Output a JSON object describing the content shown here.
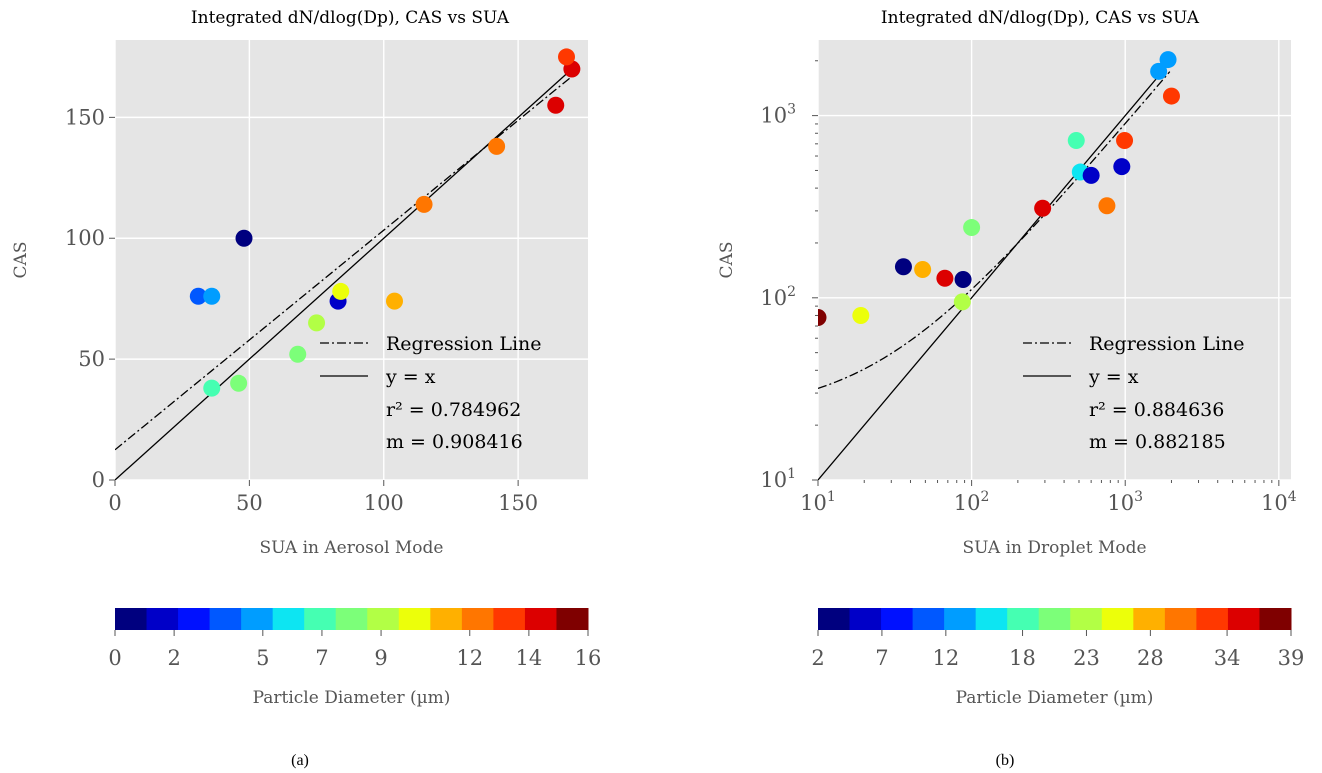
{
  "chart_data": [
    {
      "type": "scatter",
      "panel_label": "(a)",
      "title": "Integrated dN/dlog(Dp), CAS vs SUA",
      "xlabel": "SUA in Aerosol Mode",
      "ylabel": "CAS",
      "xscale": "linear",
      "yscale": "linear",
      "xlim": [
        0,
        176
      ],
      "ylim": [
        0,
        182
      ],
      "xticks": [
        0,
        50,
        100,
        150
      ],
      "yticks": [
        0,
        50,
        100,
        150
      ],
      "xtick_labels": [
        "0",
        "50",
        "100",
        "150"
      ],
      "ytick_labels": [
        "0",
        "50",
        "100",
        "150"
      ],
      "grid": true,
      "background": "#e5e5e5",
      "points": [
        {
          "x": 48,
          "y": 100,
          "d": 0.3
        },
        {
          "x": 31,
          "y": 76,
          "d": 3.5
        },
        {
          "x": 36,
          "y": 76,
          "d": 5.0
        },
        {
          "x": 83,
          "y": 74,
          "d": 1.5
        },
        {
          "x": 36,
          "y": 38,
          "d": 7.3
        },
        {
          "x": 46,
          "y": 40,
          "d": 8.3
        },
        {
          "x": 68,
          "y": 52,
          "d": 8.3
        },
        {
          "x": 75,
          "y": 65,
          "d": 9.3
        },
        {
          "x": 84,
          "y": 78,
          "d": 10.5
        },
        {
          "x": 104,
          "y": 74,
          "d": 11.0
        },
        {
          "x": 115,
          "y": 114,
          "d": 12.0
        },
        {
          "x": 142,
          "y": 138,
          "d": 12.0
        },
        {
          "x": 164,
          "y": 155,
          "d": 14.0
        },
        {
          "x": 170,
          "y": 170,
          "d": 14.0
        },
        {
          "x": 168,
          "y": 175,
          "d": 13.0
        }
      ],
      "regression_line": {
        "slope": 0.908416,
        "intercept": 12.5,
        "x_range": [
          0,
          170
        ]
      },
      "identity_line": {
        "x_range": [
          0,
          170
        ]
      },
      "legend": {
        "position": "lower-right",
        "regression_label": "Regression Line",
        "identity_label": "y = x",
        "r2_label": "r² = 0.784962",
        "m_label": "m = 0.908416"
      },
      "colorbar": {
        "label": "Particle Diameter (µm)",
        "min": 0,
        "max": 16,
        "tick_values": [
          0,
          2,
          5,
          7,
          9,
          12,
          14,
          16
        ],
        "tick_labels": [
          "0",
          "2",
          "5",
          "7",
          "9",
          "12",
          "14",
          "16"
        ],
        "colors": [
          "#00007f",
          "#0000c8",
          "#0011ff",
          "#0058ff",
          "#009dff",
          "#0de5f2",
          "#45ffb2",
          "#7cff79",
          "#b2ff45",
          "#ecff0a",
          "#ffb000",
          "#ff7600",
          "#ff3800",
          "#dc0000",
          "#7f0000"
        ]
      }
    },
    {
      "type": "scatter",
      "panel_label": "(b)",
      "title": "Integrated dN/dlog(Dp), CAS vs SUA",
      "xlabel": "SUA in Droplet Mode",
      "ylabel": "CAS",
      "xscale": "log",
      "yscale": "log",
      "xlim": [
        10,
        12000
      ],
      "ylim": [
        10,
        2600
      ],
      "xticks": [
        10,
        100,
        1000,
        10000
      ],
      "yticks": [
        10,
        100,
        1000
      ],
      "xtick_labels": [
        "10",
        "10",
        "10",
        "10"
      ],
      "xtick_exponents": [
        "1",
        "2",
        "3",
        "4"
      ],
      "ytick_labels": [
        "10",
        "10",
        "10"
      ],
      "ytick_exponents": [
        "1",
        "2",
        "3"
      ],
      "grid": true,
      "background": "#e5e5e5",
      "points": [
        {
          "x": 10,
          "y": 78,
          "d": 38.5
        },
        {
          "x": 19,
          "y": 80,
          "d": 24.5
        },
        {
          "x": 36,
          "y": 148,
          "d": 3.0
        },
        {
          "x": 48,
          "y": 143,
          "d": 28.0
        },
        {
          "x": 67,
          "y": 128,
          "d": 35.0
        },
        {
          "x": 88,
          "y": 126,
          "d": 3.0
        },
        {
          "x": 87,
          "y": 95,
          "d": 24.0
        },
        {
          "x": 100,
          "y": 243,
          "d": 21.5
        },
        {
          "x": 290,
          "y": 310,
          "d": 35.0
        },
        {
          "x": 480,
          "y": 730,
          "d": 17.0
        },
        {
          "x": 510,
          "y": 490,
          "d": 16.5
        },
        {
          "x": 600,
          "y": 470,
          "d": 5.0
        },
        {
          "x": 760,
          "y": 320,
          "d": 30.0
        },
        {
          "x": 950,
          "y": 525,
          "d": 5.0
        },
        {
          "x": 990,
          "y": 730,
          "d": 32.5
        },
        {
          "x": 1650,
          "y": 1750,
          "d": 14.0
        },
        {
          "x": 1900,
          "y": 2030,
          "d": 12.5
        },
        {
          "x": 2000,
          "y": 1280,
          "d": 32.5
        }
      ],
      "regression_line": {
        "slope": 0.882185,
        "intercept": 23,
        "x_range": [
          10,
          1950
        ]
      },
      "identity_line": {
        "x_range": [
          10,
          1950
        ]
      },
      "legend": {
        "position": "lower-right",
        "regression_label": "Regression Line",
        "identity_label": "y = x",
        "r2_label": "r² = 0.884636",
        "m_label": "m = 0.882185"
      },
      "colorbar": {
        "label": "Particle Diameter (µm)",
        "min": 2,
        "max": 39,
        "tick_values": [
          2,
          7,
          12,
          18,
          23,
          28,
          34,
          39
        ],
        "tick_labels": [
          "2",
          "7",
          "12",
          "18",
          "23",
          "28",
          "34",
          "39"
        ],
        "colors": [
          "#00007f",
          "#0000c8",
          "#0011ff",
          "#0058ff",
          "#009dff",
          "#0de5f2",
          "#45ffb2",
          "#7cff79",
          "#b2ff45",
          "#ecff0a",
          "#ffb000",
          "#ff7600",
          "#ff3800",
          "#dc0000",
          "#7f0000"
        ]
      }
    }
  ]
}
